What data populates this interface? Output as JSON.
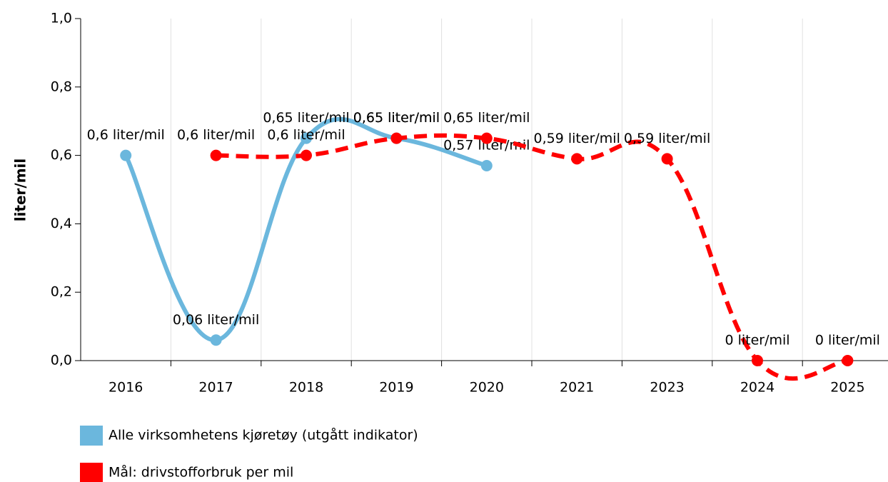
{
  "chart_data": {
    "type": "line",
    "y_label": "liter/mil",
    "categories": [
      "2016",
      "2017",
      "2018",
      "2019",
      "2020",
      "2021",
      "2023",
      "2024",
      "2025"
    ],
    "ylim": [
      0,
      1
    ],
    "yticks": [
      {
        "value": 0,
        "label": "0,0"
      },
      {
        "value": 0.2,
        "label": "0,2"
      },
      {
        "value": 0.4,
        "label": "0,4"
      },
      {
        "value": 0.6,
        "label": "0,6"
      },
      {
        "value": 0.8,
        "label": "0,8"
      },
      {
        "value": 1,
        "label": "1,0"
      }
    ],
    "grid": true,
    "legend": "bottom-left",
    "series": [
      {
        "name": "Alle virksomhetens kjøretøy (utgått indikator)",
        "color": "#6bb7dd",
        "dashed": false,
        "values": [
          0.6,
          0.06,
          0.65,
          0.65,
          0.57,
          null,
          null,
          null,
          null
        ],
        "value_labels": [
          "0,6 liter/mil",
          "0,06 liter/mil",
          "0,65 liter/mil",
          "0,65 liter/mil",
          "0,57 liter/mil",
          null,
          null,
          null,
          null
        ]
      },
      {
        "name": "Mål: drivstofforbruk per mil",
        "color": "#ff0000",
        "dashed": true,
        "values": [
          null,
          0.6,
          0.6,
          0.65,
          0.65,
          0.59,
          0.59,
          0,
          0
        ],
        "value_labels": [
          null,
          "0,6 liter/mil",
          "0,6 liter/mil",
          "0,65 liter/mil",
          "0,65 liter/mil",
          "0,59 liter/mil",
          "0,59 liter/mil",
          "0 liter/mil",
          "0 liter/mil"
        ]
      }
    ]
  }
}
